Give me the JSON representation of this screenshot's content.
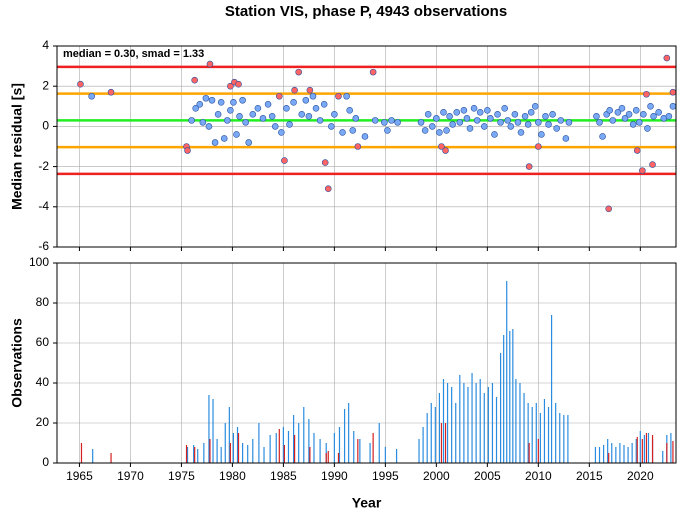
{
  "chart_data": [
    {
      "type": "scatter",
      "title": "Station VIS, phase P, 4943 observations",
      "ylabel": "Median residual [s]",
      "annotation": "median = 0.30, smad = 1.33",
      "xlim": [
        1962.8,
        2023.5
      ],
      "xticks": [
        1965,
        1970,
        1975,
        1980,
        1985,
        1990,
        1995,
        2000,
        2005,
        2010,
        2015,
        2020
      ],
      "ylim": [
        -6,
        4
      ],
      "yticks": [
        -6,
        -4,
        -2,
        0,
        2,
        4
      ],
      "grid": true,
      "reference_lines": [
        {
          "value": 2.96,
          "color": "#ee2020"
        },
        {
          "value": 1.63,
          "color": "#ffa500"
        },
        {
          "value": 0.3,
          "color": "#22ee22"
        },
        {
          "value": -1.03,
          "color": "#ffa500"
        },
        {
          "value": -2.36,
          "color": "#ee2020"
        }
      ],
      "series": [
        {
          "color": "#79a9f5",
          "x": [
            1966.2,
            1976.0,
            1976.4,
            1976.8,
            1977.1,
            1977.4,
            1977.7,
            1978.0,
            1978.3,
            1978.6,
            1978.9,
            1979.2,
            1979.5,
            1979.8,
            1980.1,
            1980.4,
            1980.7,
            1981.0,
            1981.3,
            1981.6,
            1982.0,
            1982.5,
            1983.0,
            1983.5,
            1983.9,
            1984.2,
            1984.8,
            1985.3,
            1985.6,
            1986.0,
            1986.8,
            1987.2,
            1987.5,
            1987.9,
            1988.2,
            1988.6,
            1989.0,
            1989.7,
            1990.0,
            1990.8,
            1991.2,
            1991.5,
            1991.8,
            1992.1,
            1993.0,
            1994.0,
            1994.9,
            1995.2,
            1995.6,
            1996.2,
            1998.5,
            1998.9,
            1999.2,
            1999.6,
            2000.0,
            2000.3,
            2000.7,
            2001.0,
            2001.3,
            2001.6,
            2002.0,
            2002.3,
            2002.7,
            2003.0,
            2003.3,
            2003.7,
            2004.0,
            2004.3,
            2004.7,
            2005.0,
            2005.3,
            2005.7,
            2006.0,
            2006.3,
            2006.7,
            2007.0,
            2007.3,
            2007.7,
            2008.0,
            2008.3,
            2008.7,
            2009.0,
            2009.3,
            2009.7,
            2010.0,
            2010.3,
            2010.7,
            2011.0,
            2011.4,
            2011.8,
            2012.2,
            2012.7,
            2013.0,
            2015.7,
            2016.0,
            2016.3,
            2016.7,
            2017.0,
            2017.3,
            2017.8,
            2018.2,
            2018.5,
            2018.9,
            2019.3,
            2019.6,
            2019.9,
            2020.3,
            2020.7,
            2021.0,
            2021.3,
            2021.8,
            2022.3,
            2022.8,
            2023.2
          ],
          "values": [
            1.5,
            0.3,
            0.9,
            1.1,
            0.2,
            1.4,
            0.0,
            1.3,
            -0.8,
            0.6,
            1.2,
            -0.6,
            0.3,
            0.8,
            1.2,
            -0.4,
            0.5,
            1.3,
            0.2,
            -0.8,
            0.6,
            0.9,
            0.4,
            1.1,
            0.5,
            0.0,
            -0.3,
            0.9,
            0.1,
            1.2,
            0.6,
            1.3,
            0.5,
            1.5,
            0.9,
            0.3,
            1.1,
            0.0,
            0.6,
            -0.3,
            1.5,
            0.8,
            -0.2,
            0.4,
            -0.5,
            0.3,
            0.2,
            -0.2,
            0.3,
            0.2,
            0.2,
            -0.2,
            0.6,
            0.0,
            0.4,
            -0.3,
            0.7,
            -0.2,
            0.5,
            0.1,
            0.7,
            0.2,
            0.8,
            0.4,
            -0.1,
            0.9,
            0.3,
            0.7,
            0.0,
            0.8,
            0.4,
            -0.4,
            0.6,
            0.2,
            0.9,
            0.3,
            0.0,
            0.6,
            0.2,
            -0.3,
            0.5,
            0.1,
            0.7,
            1.0,
            0.2,
            -0.4,
            0.5,
            0.1,
            0.6,
            -0.1,
            0.3,
            -0.6,
            0.2,
            0.5,
            0.2,
            -0.5,
            0.6,
            0.8,
            0.3,
            0.7,
            0.9,
            0.4,
            0.6,
            0.1,
            0.8,
            0.2,
            0.6,
            -0.1,
            1.0,
            0.5,
            0.7,
            0.4,
            0.5,
            1.0
          ]
        },
        {
          "color": "#ff6464",
          "x": [
            1965.1,
            1968.1,
            1975.5,
            1975.6,
            1976.3,
            1977.8,
            1979.8,
            1980.2,
            1980.6,
            1984.6,
            1985.1,
            1986.1,
            1986.5,
            1987.6,
            1989.1,
            1989.4,
            1990.4,
            1992.3,
            1993.8,
            2000.5,
            2000.9,
            2009.1,
            2010.0,
            2016.9,
            2019.7,
            2020.2,
            2020.6,
            2021.2,
            2022.6,
            2023.2
          ],
          "values": [
            2.1,
            1.7,
            -1.0,
            -1.2,
            2.3,
            3.1,
            2.0,
            2.2,
            2.1,
            1.5,
            -1.7,
            1.8,
            2.7,
            1.8,
            -1.8,
            -3.1,
            1.5,
            -1.0,
            2.7,
            -1.0,
            -1.2,
            -2.0,
            -1.0,
            -4.1,
            -1.2,
            -2.2,
            1.6,
            -1.9,
            3.4,
            1.7
          ]
        }
      ]
    },
    {
      "type": "bar",
      "ylabel": "Observations",
      "xlabel": "Year",
      "xlim": [
        1962.8,
        2023.5
      ],
      "xticks": [
        1965,
        1970,
        1975,
        1980,
        1985,
        1990,
        1995,
        2000,
        2005,
        2010,
        2015,
        2020
      ],
      "ylim": [
        0,
        100
      ],
      "yticks": [
        0,
        20,
        40,
        60,
        80,
        100
      ],
      "grid": true,
      "series": [
        {
          "color": "#2a8ce0",
          "x": [
            1966.3,
            1975.6,
            1976.2,
            1976.6,
            1977.2,
            1977.7,
            1978.1,
            1978.5,
            1978.9,
            1979.3,
            1979.7,
            1980.1,
            1980.5,
            1981.0,
            1981.5,
            1982.0,
            1982.6,
            1983.1,
            1983.7,
            1984.3,
            1985.0,
            1985.5,
            1986.0,
            1986.5,
            1987.0,
            1987.5,
            1988.0,
            1988.6,
            1989.2,
            1990.0,
            1990.5,
            1991.0,
            1991.4,
            1991.9,
            1992.5,
            1993.5,
            1994.4,
            1995.0,
            1996.1,
            1998.3,
            1998.7,
            1999.1,
            1999.5,
            1999.9,
            2000.3,
            2000.7,
            2001.1,
            2001.5,
            2001.9,
            2002.3,
            2002.7,
            2003.1,
            2003.5,
            2003.9,
            2004.3,
            2004.7,
            2005.1,
            2005.5,
            2005.9,
            2006.3,
            2006.6,
            2006.9,
            2007.2,
            2007.5,
            2007.8,
            2008.2,
            2008.6,
            2009.0,
            2009.4,
            2009.8,
            2010.2,
            2010.6,
            2011.0,
            2011.3,
            2011.7,
            2012.1,
            2012.5,
            2012.9,
            2015.6,
            2016.0,
            2016.4,
            2016.8,
            2017.2,
            2017.6,
            2018.0,
            2018.4,
            2018.8,
            2019.2,
            2019.6,
            2020.0,
            2020.4,
            2020.8,
            2021.2,
            2022.2,
            2022.6,
            2023.0
          ],
          "values": [
            7,
            8,
            9,
            7,
            10,
            34,
            32,
            12,
            8,
            20,
            28,
            15,
            18,
            10,
            9,
            12,
            20,
            8,
            14,
            15,
            18,
            16,
            24,
            20,
            28,
            22,
            15,
            12,
            10,
            15,
            18,
            27,
            30,
            16,
            12,
            10,
            20,
            8,
            7,
            12,
            18,
            25,
            30,
            28,
            35,
            42,
            40,
            38,
            30,
            44,
            40,
            38,
            45,
            40,
            42,
            35,
            38,
            40,
            33,
            55,
            64,
            91,
            66,
            67,
            42,
            40,
            35,
            30,
            28,
            30,
            25,
            32,
            28,
            74,
            30,
            25,
            24,
            24,
            8,
            8,
            9,
            12,
            10,
            8,
            10,
            9,
            8,
            10,
            12,
            16,
            14,
            15,
            12,
            6,
            14,
            15
          ]
        },
        {
          "color": "#d42020",
          "x": [
            1965.2,
            1968.1,
            1975.5,
            1976.3,
            1977.8,
            1979.8,
            1980.6,
            1984.6,
            1985.1,
            1986.1,
            1987.6,
            1989.2,
            1989.4,
            1990.4,
            1992.3,
            1993.8,
            2000.5,
            2000.9,
            2009.1,
            2010.0,
            2016.9,
            2019.7,
            2020.2,
            2020.6,
            2021.2,
            2022.6,
            2023.2
          ],
          "values": [
            10,
            5,
            9,
            8,
            12,
            10,
            15,
            17,
            9,
            14,
            8,
            5,
            6,
            5,
            12,
            15,
            20,
            20,
            10,
            12,
            5,
            13,
            12,
            15,
            14,
            10,
            11
          ]
        }
      ]
    }
  ]
}
